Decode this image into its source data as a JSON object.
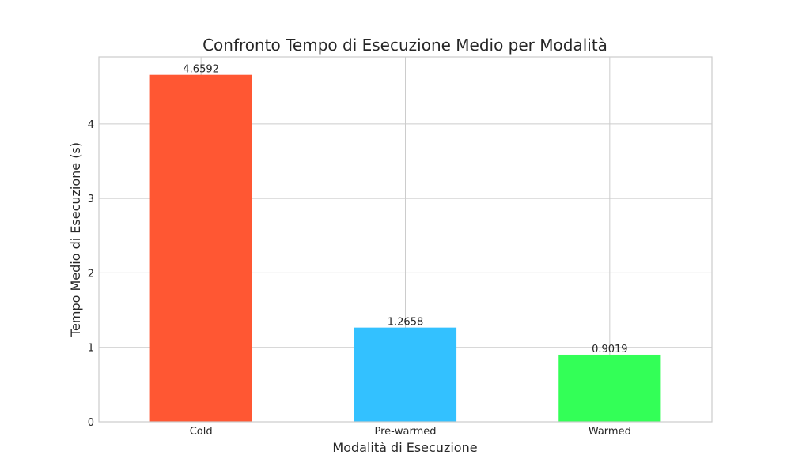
{
  "chart_data": {
    "type": "bar",
    "title": "Confronto Tempo di Esecuzione Medio per Modalità",
    "xlabel": "Modalità di Esecuzione",
    "ylabel": "Tempo Medio di Esecuzione (s)",
    "categories": [
      "Cold",
      "Pre-warmed",
      "Warmed"
    ],
    "values": [
      4.6592,
      1.2658,
      0.9019
    ],
    "value_labels": [
      "4.6592",
      "1.2658",
      "0.9019"
    ],
    "colors": [
      "#ff5733",
      "#33c1ff",
      "#33ff57"
    ],
    "ylim": [
      0,
      4.9
    ],
    "yticks": [
      0,
      1,
      2,
      3,
      4
    ],
    "grid": true,
    "legend": false
  }
}
